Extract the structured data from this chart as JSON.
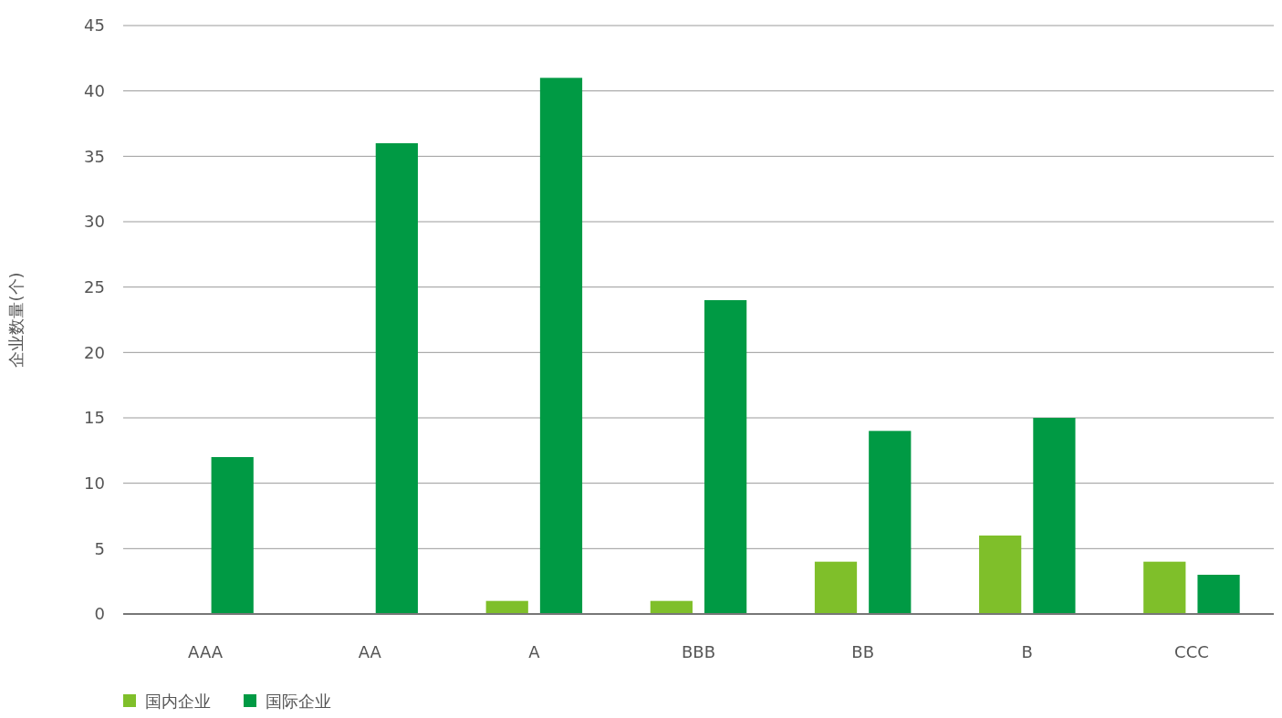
{
  "chart_data": {
    "type": "bar",
    "ylabel": "企业数量(个)",
    "categories": [
      "AAA",
      "AA",
      "A",
      "BBB",
      "BB",
      "B",
      "CCC"
    ],
    "series": [
      {
        "name": "国内企业",
        "color": "#7fbf2a",
        "values": [
          0,
          0,
          1,
          1,
          4,
          6,
          4
        ]
      },
      {
        "name": "国际企业",
        "color": "#009a44",
        "values": [
          12,
          36,
          41,
          24,
          14,
          15,
          3
        ]
      }
    ],
    "ylim": [
      0,
      45
    ],
    "yticks": [
      0,
      5,
      10,
      15,
      20,
      25,
      30,
      35,
      40,
      45
    ],
    "grid": "y",
    "legend": "bottom left"
  }
}
